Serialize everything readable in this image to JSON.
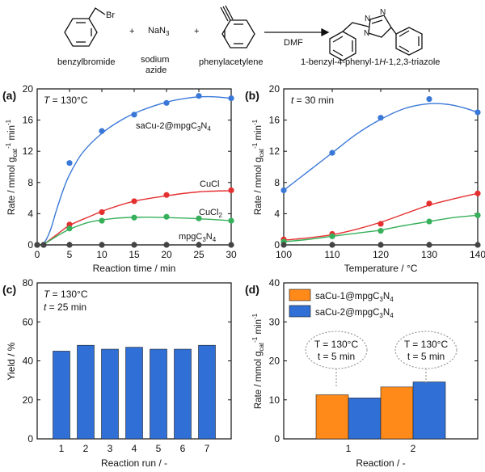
{
  "scheme": {
    "reagents": [
      {
        "name": "benzylbromide",
        "formula": "Br"
      },
      {
        "name": "sodium azide",
        "formula": "NaN3"
      },
      {
        "name": "phenylacetylene",
        "formula": ""
      }
    ],
    "plus": "+",
    "solvent": "DMF",
    "product": "1-benzyl-4-phenyl-1H-1,2,3-triazole",
    "atom_N": "N"
  },
  "colors": {
    "blue": "#3a78d8",
    "red": "#e53030",
    "green": "#36b05a",
    "grey": "#444444",
    "bar_blue": "#2f6fd6",
    "bar_orange": "#ff8a1a"
  },
  "chart_data": [
    {
      "panel": "(a)",
      "type": "line",
      "annotation": "T = 130°C",
      "xlabel": "Reaction time / min",
      "ylabel": "Rate / mmol gcat-1 min-1",
      "xlim": [
        0,
        30
      ],
      "ylim": [
        0,
        20
      ],
      "xticks": [
        0,
        5,
        10,
        15,
        20,
        25,
        30
      ],
      "yticks": [
        0,
        4,
        8,
        12,
        16,
        20
      ],
      "series": [
        {
          "name": "saCu-2@mpgC3N4",
          "color": "blue",
          "x": [
            0,
            1,
            5,
            10,
            15,
            20,
            25,
            30
          ],
          "y": [
            0,
            0,
            10.5,
            14.6,
            16.7,
            18.2,
            19.1,
            18.8
          ],
          "curve": [
            [
              0,
              0
            ],
            [
              1,
              0.2
            ],
            [
              2,
              1.8
            ],
            [
              3,
              4.5
            ],
            [
              4,
              7
            ],
            [
              5,
              9
            ],
            [
              7,
              11.8
            ],
            [
              10,
              14.3
            ],
            [
              13,
              16
            ],
            [
              16,
              17.2
            ],
            [
              20,
              18.3
            ],
            [
              24,
              18.9
            ],
            [
              27,
              19
            ],
            [
              30,
              18.8
            ]
          ]
        },
        {
          "name": "CuCl",
          "color": "red",
          "x": [
            0,
            1,
            5,
            10,
            15,
            20,
            30
          ],
          "y": [
            0,
            0,
            2.6,
            4.2,
            5.6,
            6.4,
            7.0
          ],
          "curve": [
            [
              0,
              0
            ],
            [
              1,
              0.1
            ],
            [
              3,
              1.3
            ],
            [
              5,
              2.5
            ],
            [
              8,
              3.6
            ],
            [
              11,
              4.6
            ],
            [
              15,
              5.6
            ],
            [
              20,
              6.3
            ],
            [
              25,
              6.8
            ],
            [
              30,
              6.95
            ]
          ]
        },
        {
          "name": "CuCl2",
          "color": "green",
          "x": [
            0,
            1,
            5,
            10,
            15,
            20,
            25,
            30
          ],
          "y": [
            0,
            0,
            2.1,
            3.1,
            3.5,
            3.6,
            3.4,
            3.1
          ],
          "curve": [
            [
              0,
              0
            ],
            [
              1,
              0.1
            ],
            [
              3,
              1.1
            ],
            [
              5,
              2.0
            ],
            [
              8,
              2.9
            ],
            [
              12,
              3.4
            ],
            [
              16,
              3.55
            ],
            [
              20,
              3.5
            ],
            [
              25,
              3.35
            ],
            [
              30,
              3.1
            ]
          ]
        },
        {
          "name": "mpgC3N4",
          "color": "grey",
          "x": [
            0,
            1,
            5,
            10,
            15,
            20,
            25,
            30
          ],
          "y": [
            0,
            0,
            0,
            0,
            0,
            0,
            0,
            0
          ],
          "curve": [
            [
              0,
              0
            ],
            [
              30,
              0
            ]
          ]
        }
      ],
      "labels": [
        {
          "text": "saCu-2@mpgC3N4",
          "x": 22.5,
          "y": 14.2
        },
        {
          "text": "CuCl",
          "x": 26.5,
          "y": 7.9
        },
        {
          "text": "CuCl2",
          "x": 26.5,
          "y": 4.3
        },
        {
          "text": "mpgC3N4",
          "x": 25,
          "y": 1.3
        }
      ]
    },
    {
      "panel": "(b)",
      "type": "line",
      "annotation": "t = 30 min",
      "xlabel": "Temperature / °C",
      "ylabel": "Rate / mmol gcat-1 min-1",
      "xlim": [
        100,
        140
      ],
      "ylim": [
        0,
        20
      ],
      "xticks": [
        100,
        110,
        120,
        130,
        140
      ],
      "yticks": [
        0,
        4,
        8,
        12,
        16,
        20
      ],
      "series": [
        {
          "name": "saCu-2@mpgC3N4",
          "color": "blue",
          "x": [
            100,
            110,
            120,
            130,
            140
          ],
          "y": [
            7.0,
            11.8,
            16.3,
            18.7,
            17.0
          ],
          "curve": [
            [
              100,
              7
            ],
            [
              105,
              9.4
            ],
            [
              110,
              11.8
            ],
            [
              115,
              14.2
            ],
            [
              120,
              16.1
            ],
            [
              125,
              17.5
            ],
            [
              130,
              18.1
            ],
            [
              134,
              18
            ],
            [
              137,
              17.6
            ],
            [
              140,
              17
            ]
          ]
        },
        {
          "name": "CuCl",
          "color": "red",
          "x": [
            100,
            110,
            120,
            130,
            140
          ],
          "y": [
            0.7,
            1.4,
            2.7,
            5.3,
            6.6
          ],
          "curve": [
            [
              100,
              0.6
            ],
            [
              105,
              0.9
            ],
            [
              110,
              1.3
            ],
            [
              115,
              2
            ],
            [
              120,
              2.9
            ],
            [
              125,
              4
            ],
            [
              130,
              5.1
            ],
            [
              135,
              5.9
            ],
            [
              140,
              6.6
            ]
          ]
        },
        {
          "name": "CuCl2",
          "color": "green",
          "x": [
            100,
            110,
            120,
            130,
            140
          ],
          "y": [
            0.4,
            1.1,
            1.8,
            3.0,
            3.8
          ],
          "curve": [
            [
              100,
              0.4
            ],
            [
              105,
              0.7
            ],
            [
              110,
              1.1
            ],
            [
              115,
              1.5
            ],
            [
              120,
              1.9
            ],
            [
              125,
              2.5
            ],
            [
              130,
              3
            ],
            [
              135,
              3.5
            ],
            [
              140,
              3.8
            ]
          ]
        },
        {
          "name": "mpgC3N4",
          "color": "grey",
          "x": [
            100,
            110,
            120,
            130,
            140
          ],
          "y": [
            0,
            0,
            0,
            0,
            0
          ],
          "curve": [
            [
              100,
              0
            ],
            [
              140,
              0
            ]
          ]
        }
      ],
      "labels": []
    },
    {
      "panel": "(c)",
      "type": "bar",
      "annotation": [
        "T = 130°C",
        "t = 25 min"
      ],
      "xlabel": "Reaction run / -",
      "ylabel": "Yield / %",
      "ylim": [
        0,
        80
      ],
      "yticks": [
        0,
        20,
        40,
        60,
        80
      ],
      "categories": [
        "1",
        "2",
        "3",
        "4",
        "5",
        "6",
        "7"
      ],
      "values": [
        45,
        48,
        46,
        47,
        46,
        46,
        48
      ],
      "color": "bar_blue"
    },
    {
      "panel": "(d)",
      "type": "bar",
      "xlabel": "Reaction / -",
      "ylabel": "Rate / mmol gcat-1 min-1",
      "ylim": [
        0,
        40
      ],
      "yticks": [
        0,
        10,
        20,
        30,
        40
      ],
      "categories": [
        "1",
        "2"
      ],
      "series": [
        {
          "name": "saCu-1@mpgC3N4",
          "color": "bar_orange",
          "values": [
            11.3,
            13.3
          ]
        },
        {
          "name": "saCu-2@mpgC3N4",
          "color": "bar_blue",
          "values": [
            10.5,
            14.6
          ]
        }
      ],
      "callouts": [
        {
          "lines": [
            "T = 130°C",
            "t = 5 min"
          ]
        },
        {
          "lines": [
            "T = 130°C",
            "t = 5 min"
          ]
        }
      ]
    }
  ]
}
